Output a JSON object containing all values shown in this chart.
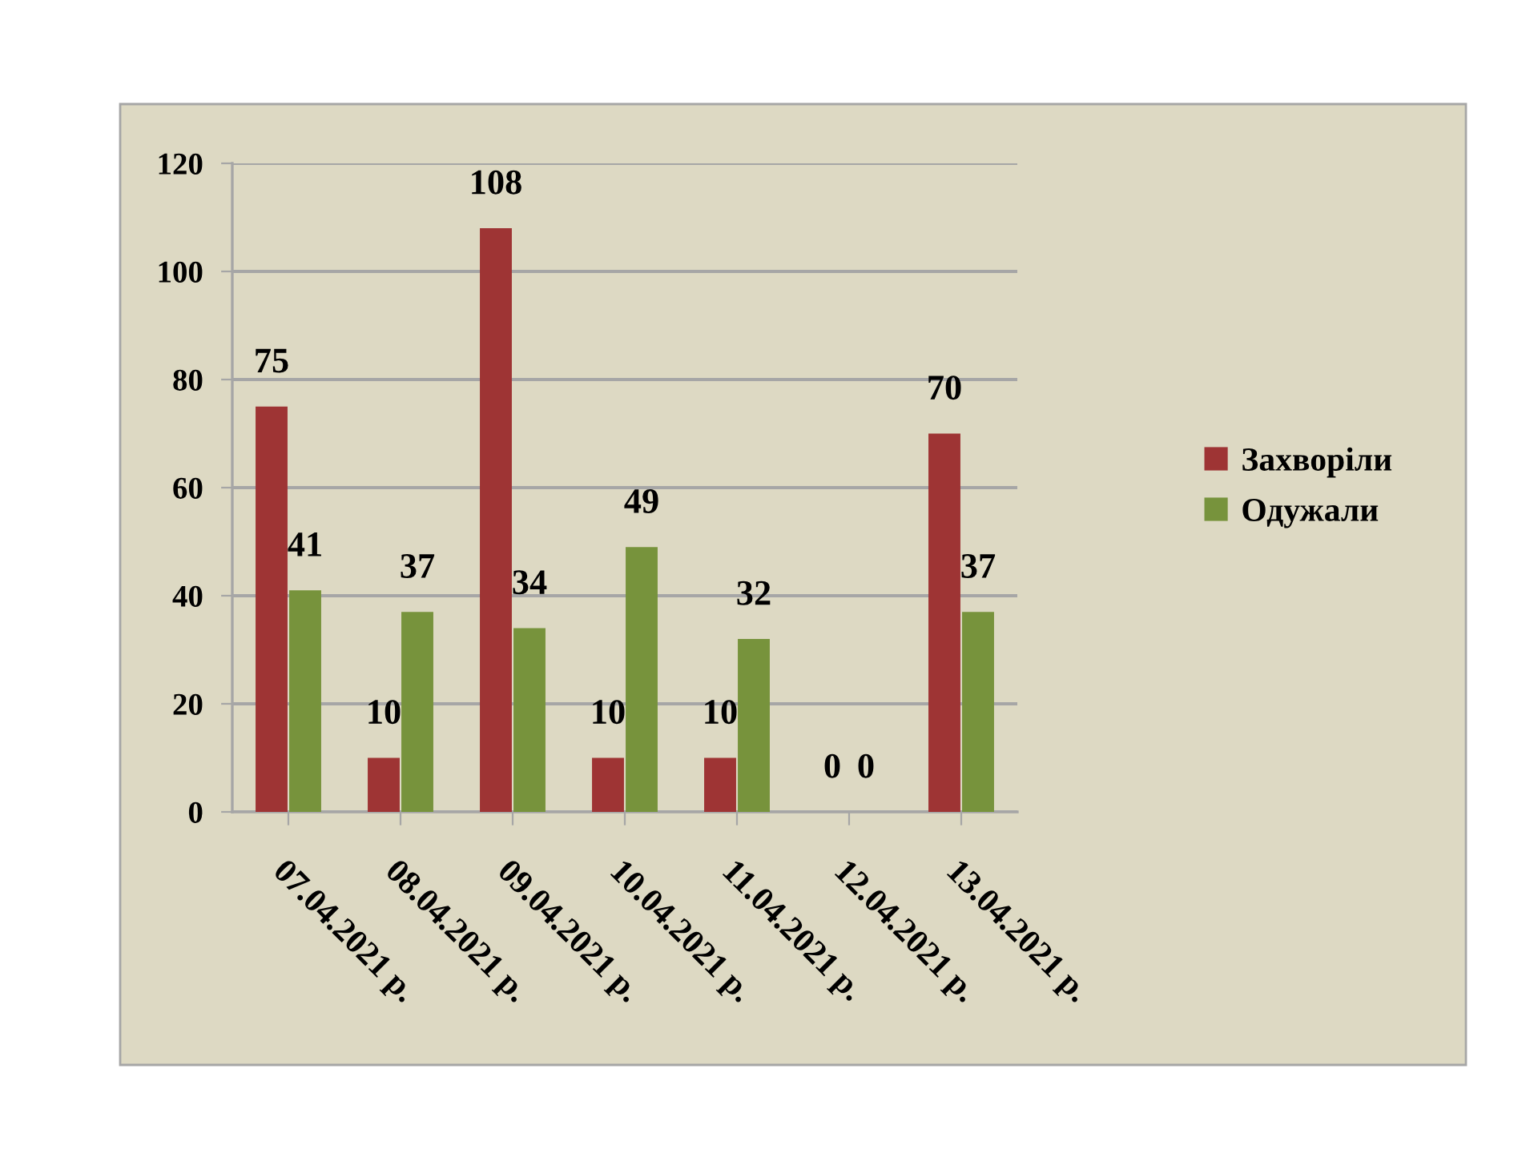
{
  "chart_data": {
    "type": "bar",
    "categories": [
      "07.04.2021 р.",
      "08.04.2021 р.",
      "09.04.2021 р.",
      "10.04.2021 р.",
      "11.04.2021 р.",
      "12.04.2021 р.",
      "13.04.2021 р."
    ],
    "series": [
      {
        "name": "Захворіли",
        "color": "#9e3434",
        "values": [
          75,
          10,
          108,
          10,
          10,
          0,
          70
        ]
      },
      {
        "name": "Одужали",
        "color": "#77933c",
        "values": [
          41,
          37,
          34,
          49,
          32,
          0,
          37
        ]
      }
    ],
    "ylim": [
      0,
      120
    ],
    "yticks": [
      0,
      20,
      40,
      60,
      80,
      100,
      120
    ],
    "grid": "y",
    "legend": "right",
    "data_labels": true
  }
}
